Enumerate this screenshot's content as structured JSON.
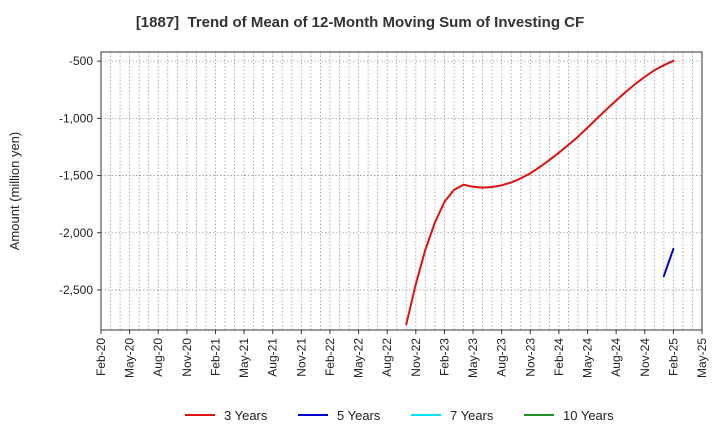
{
  "chart_data": {
    "type": "line",
    "title": "[1887]  Trend of Mean of 12-Month Moving Sum of Investing CF",
    "xlabel": "",
    "ylabel": "Amount (million yen)",
    "x_ticks": [
      "Feb-20",
      "May-20",
      "Aug-20",
      "Nov-20",
      "Feb-21",
      "May-21",
      "Aug-21",
      "Nov-21",
      "Feb-22",
      "May-22",
      "Aug-22",
      "Nov-22",
      "Feb-23",
      "May-23",
      "Aug-23",
      "Nov-23",
      "Feb-24",
      "May-24",
      "Aug-24",
      "Nov-24",
      "Feb-25",
      "May-25"
    ],
    "ylim": [
      -2850,
      -420
    ],
    "y_ticks": [
      -500,
      -1000,
      -1500,
      -2000,
      -2500
    ],
    "y_tick_labels": [
      "-500",
      "-1,000",
      "-1,500",
      "-2,000",
      "-2,500"
    ],
    "grid": true,
    "legend_position": "bottom",
    "series": [
      {
        "name": "3 Years",
        "color": "#dd1111",
        "points": [
          [
            "Oct-22",
            -2800
          ],
          [
            "Nov-22",
            -2450
          ],
          [
            "Dec-22",
            -2150
          ],
          [
            "Jan-23",
            -1910
          ],
          [
            "Feb-23",
            -1730
          ],
          [
            "Mar-23",
            -1625
          ],
          [
            "Apr-23",
            -1580
          ],
          [
            "May-23",
            -1598
          ],
          [
            "Jun-23",
            -1605
          ],
          [
            "Jul-23",
            -1600
          ],
          [
            "Aug-23",
            -1585
          ],
          [
            "Sep-23",
            -1560
          ],
          [
            "Oct-23",
            -1525
          ],
          [
            "Nov-23",
            -1480
          ],
          [
            "Dec-23",
            -1425
          ],
          [
            "Jan-24",
            -1365
          ],
          [
            "Feb-24",
            -1300
          ],
          [
            "Mar-24",
            -1232
          ],
          [
            "Apr-24",
            -1160
          ],
          [
            "May-24",
            -1082
          ],
          [
            "Jun-24",
            -1000
          ],
          [
            "Jul-24",
            -920
          ],
          [
            "Aug-24",
            -845
          ],
          [
            "Sep-24",
            -770
          ],
          [
            "Oct-24",
            -700
          ],
          [
            "Nov-24",
            -637
          ],
          [
            "Dec-24",
            -580
          ],
          [
            "Jan-25",
            -535
          ],
          [
            "Feb-25",
            -497
          ]
        ]
      },
      {
        "name": "5 Years",
        "color": "#0000cc",
        "points": [
          [
            "Jan-25",
            -2380
          ],
          [
            "Feb-25",
            -2140
          ]
        ]
      },
      {
        "name": "7 Years",
        "color": "#00e5ee",
        "points": []
      },
      {
        "name": "10 Years",
        "color": "#228b22",
        "points": []
      }
    ]
  }
}
